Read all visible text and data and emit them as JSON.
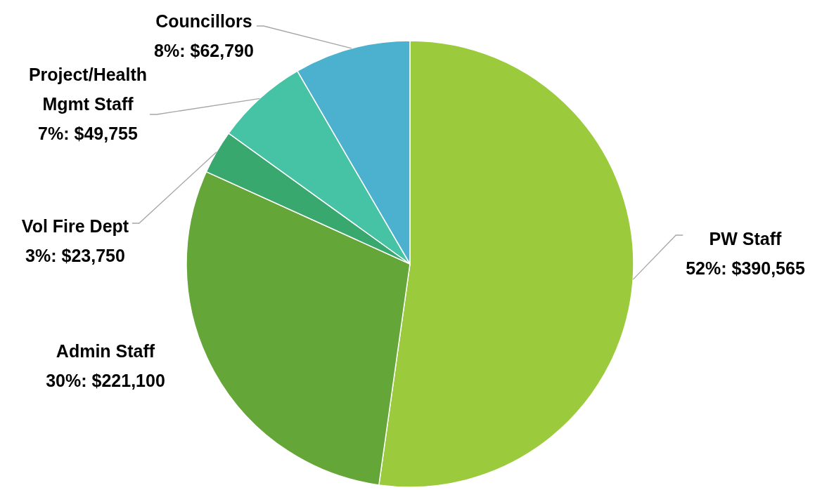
{
  "chart_data": {
    "type": "pie",
    "categories": [
      "PW Staff",
      "Admin Staff",
      "Vol Fire Dept",
      "Project/Health Mgmt Staff",
      "Councillors"
    ],
    "values": [
      390565,
      221100,
      23750,
      49755,
      62790
    ],
    "value_labels": [
      "52%: $390,565",
      "30%: $221,100",
      "3%: $23,750",
      "7%: $49,755",
      "8%: $62,790"
    ],
    "colors": [
      "#9bcb3c",
      "#64a637",
      "#38a86e",
      "#46c3a4",
      "#4bb1cf"
    ]
  }
}
